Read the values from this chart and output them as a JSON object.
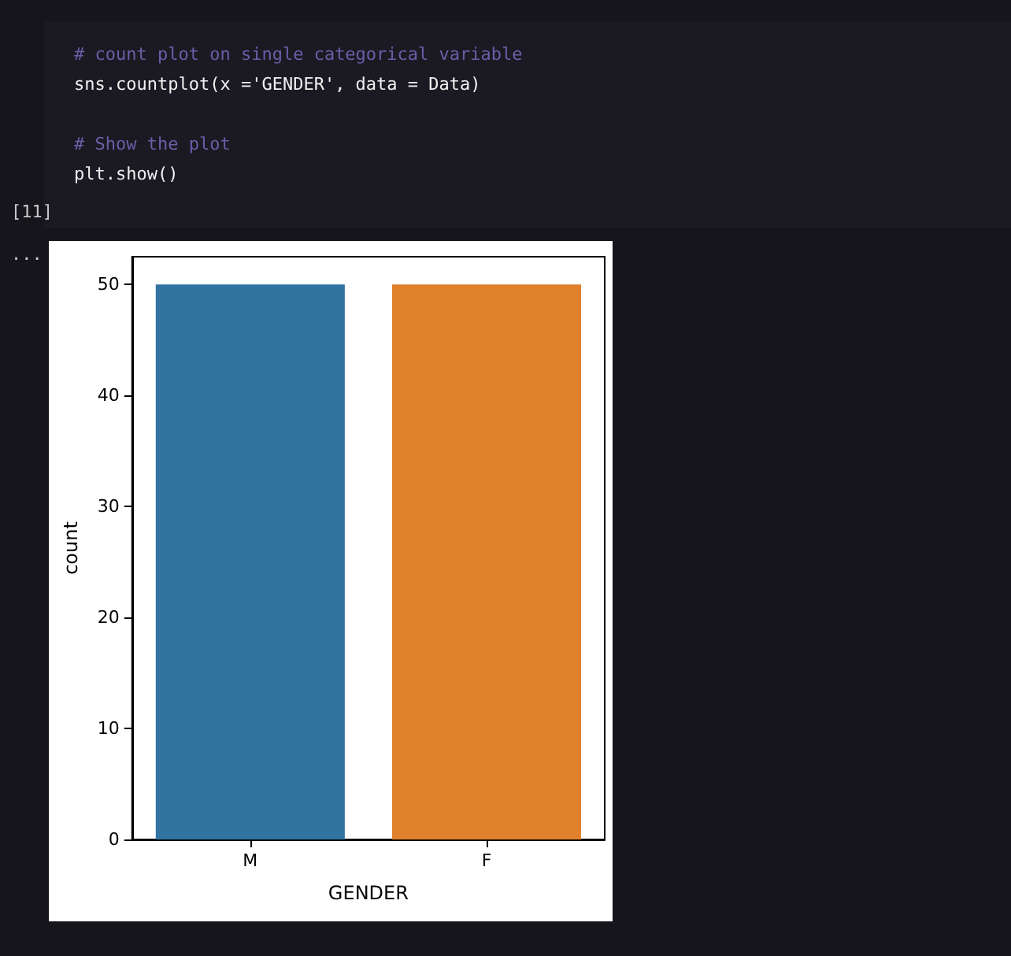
{
  "chart_data": {
    "type": "bar",
    "xlabel": "GENDER",
    "ylabel": "count",
    "categories": [
      "M",
      "F"
    ],
    "values": [
      50,
      50
    ],
    "colors": [
      "#3274a1",
      "#e1812c"
    ],
    "ylim": [
      0,
      52.5
    ],
    "yticks": [
      0,
      10,
      20,
      30,
      40,
      50
    ],
    "grid": false,
    "annotations": [
      "# count plot on single categorical variable",
      "sns.countplot(x ='GENDER', data = Data)",
      "# Show the plot",
      "plt.show()",
      "[11]",
      "..."
    ]
  }
}
